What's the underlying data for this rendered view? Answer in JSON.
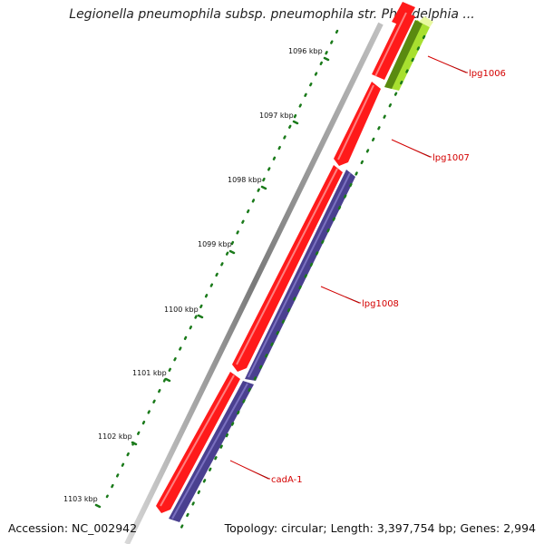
{
  "title": "Legionella pneumophila subsp. pneumophila str. Philadelphia ...",
  "footer": {
    "accession": "Accession: NC_002942",
    "summary": "Topology: circular; Length: 3,397,754 bp; Genes: 2,994"
  },
  "scale_labels": [
    "1096 kbp",
    "1097 kbp",
    "1098 kbp",
    "1099 kbp",
    "1100 kbp",
    "1101 kbp",
    "1102 kbp",
    "1103 kbp"
  ],
  "genes": [
    {
      "name": "lpg1006"
    },
    {
      "name": "lpg1007"
    },
    {
      "name": "lpg1008"
    },
    {
      "name": "cadA-1"
    }
  ],
  "colors": {
    "forward_cds": "#ff1a1a",
    "reverse_cds": "#4a4090",
    "highlight_cds": "#a8e030",
    "tick": "#1a7a1a",
    "backbone": "#8a8a8a",
    "label": "#d40000"
  }
}
